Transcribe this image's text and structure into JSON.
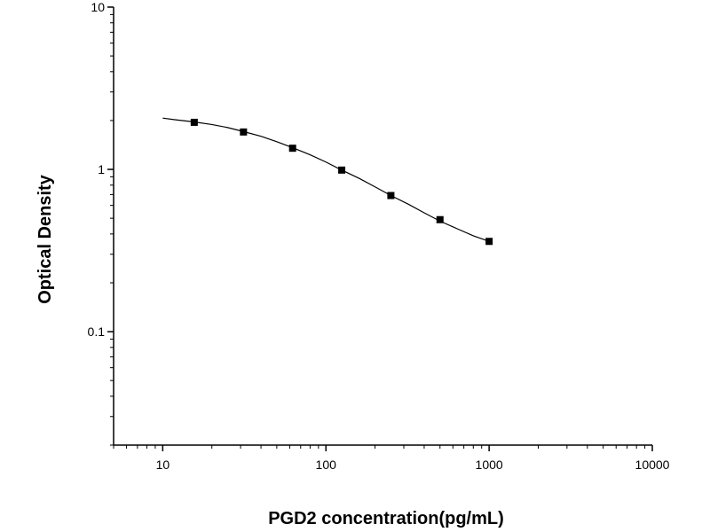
{
  "chart_data": {
    "type": "scatter",
    "title": "",
    "xlabel": "PGD2 concentration(pg/mL)",
    "ylabel": "Optical Density",
    "x_scale": "log",
    "y_scale": "log",
    "xlim": [
      5,
      10000
    ],
    "ylim": [
      0.02,
      10
    ],
    "x_tick_values": [
      10,
      100,
      1000,
      10000
    ],
    "x_tick_labels": [
      "10",
      "100",
      "1000",
      "10000"
    ],
    "y_tick_values": [
      0.1,
      1,
      10
    ],
    "y_tick_labels": [
      "0.1",
      "1",
      "10"
    ],
    "grid": false,
    "legend": "none",
    "series": [
      {
        "kind": "points",
        "marker": "square",
        "color": "#000000",
        "x": [
          15.6,
          31.25,
          62.5,
          125,
          250,
          500,
          1000
        ],
        "y": [
          1.95,
          1.7,
          1.35,
          0.99,
          0.69,
          0.49,
          0.36
        ]
      },
      {
        "kind": "fit-curve",
        "color": "#000000",
        "x": [
          10,
          12,
          15,
          20,
          25,
          31.25,
          40,
          50,
          62.5,
          80,
          100,
          125,
          160,
          200,
          250,
          320,
          400,
          500,
          640,
          800,
          1000
        ],
        "y": [
          2.07,
          2.02,
          1.97,
          1.89,
          1.81,
          1.71,
          1.6,
          1.48,
          1.36,
          1.23,
          1.11,
          0.99,
          0.88,
          0.78,
          0.69,
          0.61,
          0.54,
          0.48,
          0.43,
          0.39,
          0.36
        ]
      }
    ]
  }
}
